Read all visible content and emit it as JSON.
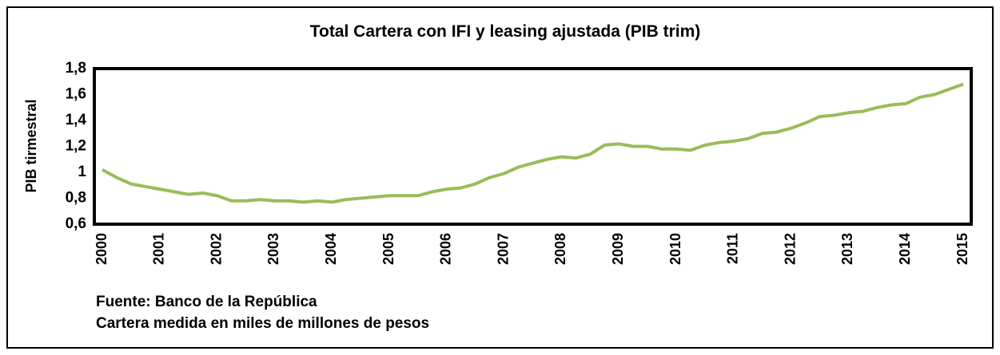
{
  "chart_data": {
    "type": "line",
    "title": "Total Cartera  con IFI y leasing ajustada (PIB trim)",
    "y_label": "PIB tirmestral",
    "notes": [
      "Fuente: Banco de la República",
      "Cartera medida en miles de millones de pesos"
    ],
    "categories": [
      "2000",
      null,
      null,
      null,
      "2001",
      null,
      null,
      null,
      "2002",
      null,
      null,
      null,
      "2003",
      null,
      null,
      null,
      "2004",
      null,
      null,
      null,
      "2005",
      null,
      null,
      null,
      "2006",
      null,
      null,
      null,
      "2007",
      null,
      null,
      null,
      "2008",
      null,
      null,
      null,
      "2009",
      null,
      null,
      null,
      "2010",
      null,
      null,
      null,
      "2011",
      null,
      null,
      null,
      "2012",
      null,
      null,
      null,
      "2013",
      null,
      null,
      null,
      "2014",
      null,
      null,
      null,
      "2015"
    ],
    "series": [
      {
        "name": "Total Cartera",
        "color": "#9bbb59",
        "values": [
          1.02,
          0.96,
          0.91,
          0.89,
          0.87,
          0.85,
          0.83,
          0.84,
          0.82,
          0.78,
          0.78,
          0.79,
          0.78,
          0.78,
          0.77,
          0.78,
          0.77,
          0.79,
          0.8,
          0.81,
          0.82,
          0.82,
          0.82,
          0.85,
          0.87,
          0.88,
          0.91,
          0.96,
          0.99,
          1.04,
          1.07,
          1.1,
          1.12,
          1.11,
          1.14,
          1.21,
          1.22,
          1.2,
          1.2,
          1.18,
          1.18,
          1.17,
          1.21,
          1.23,
          1.24,
          1.26,
          1.3,
          1.31,
          1.34,
          1.38,
          1.43,
          1.44,
          1.46,
          1.47,
          1.5,
          1.52,
          1.53,
          1.58,
          1.6,
          1.64,
          1.68
        ]
      }
    ],
    "ylim": [
      0.6,
      1.8
    ],
    "yticks": [
      {
        "value": 0.6,
        "label": "0,6"
      },
      {
        "value": 0.8,
        "label": "0,8"
      },
      1,
      {
        "value": 1.2,
        "label": "1,2"
      },
      {
        "value": 1.4,
        "label": "1,4"
      },
      {
        "value": 1.6,
        "label": "1,6"
      },
      {
        "value": 1.8,
        "label": "1,8"
      }
    ],
    "grid": false
  }
}
